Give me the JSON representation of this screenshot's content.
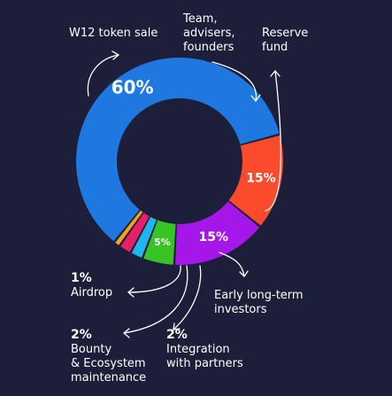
{
  "chart_data": {
    "type": "pie",
    "donut": true,
    "series": [
      {
        "name": "W12 token sale",
        "value": 60,
        "label": "60%",
        "color": "#1e78e0"
      },
      {
        "name": "Team, advisers, founders",
        "value": 15,
        "label": "15%",
        "color": "#fb4a2c"
      },
      {
        "name": "Reserve fund",
        "value": 15,
        "label": "15%",
        "color": "#a516e8"
      },
      {
        "name": "Early long-term investors",
        "value": 5,
        "label": "5%",
        "color": "#39c425"
      },
      {
        "name": "Integration with partners",
        "value": 2,
        "label": "2%",
        "color": "#22b4ee"
      },
      {
        "name": "Bounty & Ecosystem maintenance",
        "value": 2,
        "label": "2%",
        "color": "#e51f6a"
      },
      {
        "name": "Airdrop",
        "value": 1,
        "label": "1%",
        "color": "#f3a21e"
      }
    ],
    "labels": {
      "token_sale": "W12 token sale",
      "team": "Team,\nadvisers,\nfounders",
      "reserve": "Reserve\nfund",
      "investors": "Early long-term\ninvestors",
      "integration_pct": "2%",
      "integration": "Integration\nwith partners",
      "bounty_pct": "2%",
      "bounty": "Bounty\n& Ecosystem\nmaintenance",
      "airdrop_pct": "1%",
      "airdrop": "Airdrop"
    }
  }
}
